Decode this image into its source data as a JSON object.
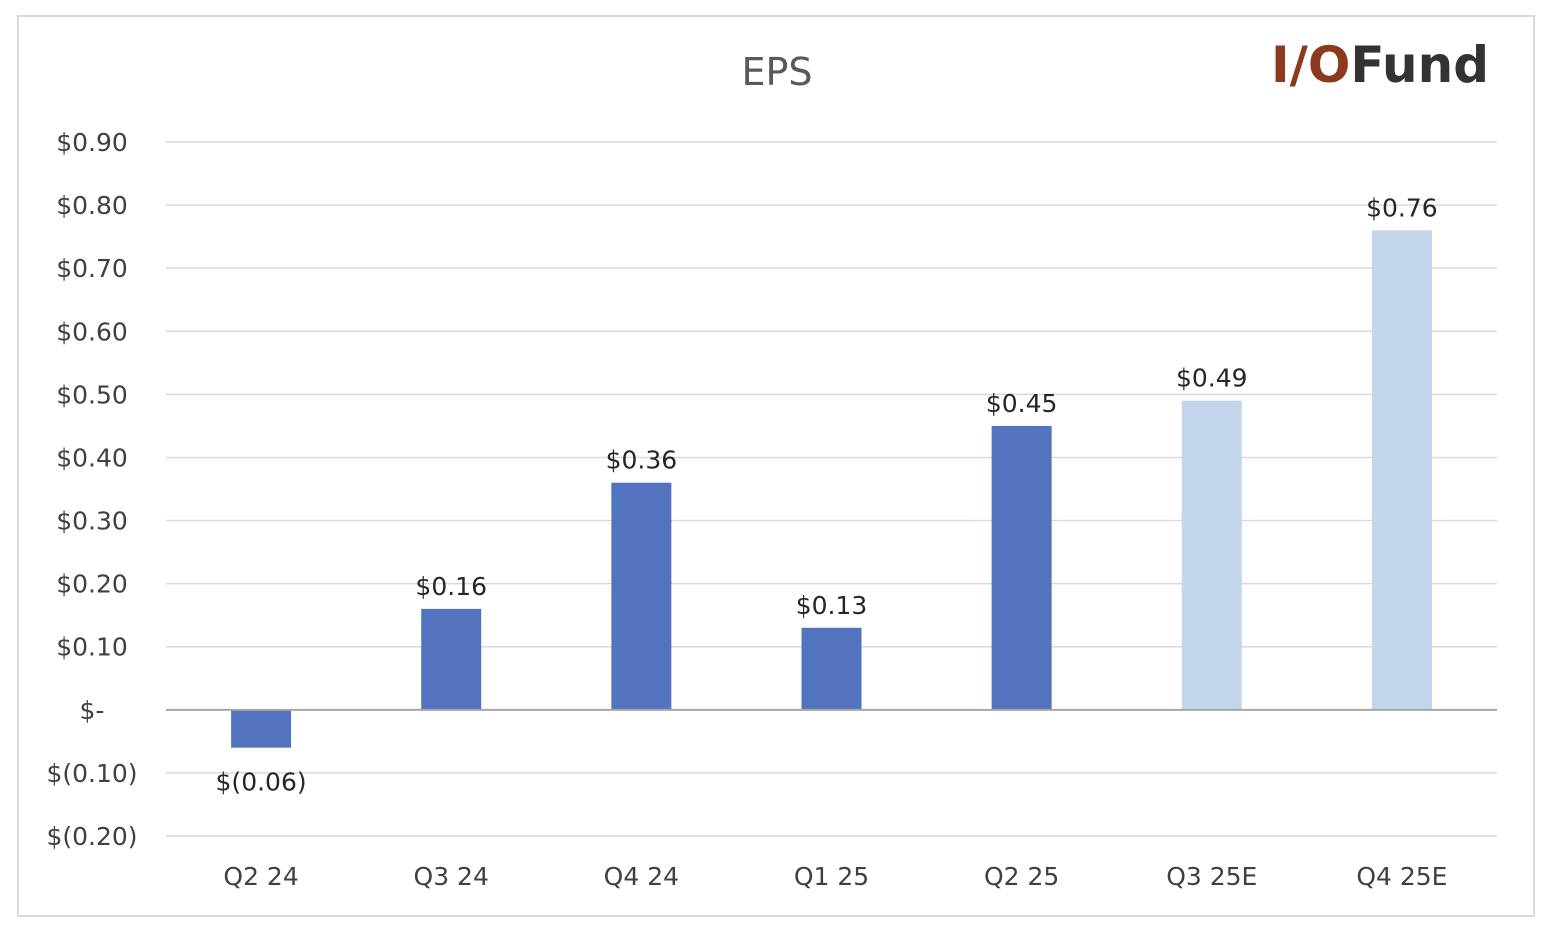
{
  "chart_data": {
    "type": "bar",
    "title": "EPS",
    "categories": [
      "Q2 24",
      "Q3 24",
      "Q4 24",
      "Q1 25",
      "Q2 25",
      "Q3 25E",
      "Q4 25E"
    ],
    "values": [
      -0.06,
      0.16,
      0.36,
      0.13,
      0.45,
      0.49,
      0.76
    ],
    "data_labels": [
      "$(0.06)",
      "$0.16",
      "$0.36",
      "$0.13",
      "$0.45",
      "$0.49",
      "$0.76"
    ],
    "ylim": [
      -0.2,
      0.9
    ],
    "yticks": [
      0.9,
      0.8,
      0.7,
      0.6,
      0.5,
      0.4,
      0.3,
      0.2,
      0.1,
      0,
      -0.1,
      -0.2
    ],
    "ytick_labels": [
      "$0.90",
      "$0.80",
      "$0.70",
      "$0.60",
      "$0.50",
      "$0.40",
      "$0.30",
      "$0.20",
      "$0.10",
      "$-",
      "$(0.10)",
      "$(0.20)"
    ],
    "xlabel": "",
    "ylabel": "",
    "grid": true,
    "legend": "none",
    "colors": {
      "actual": "#5274be",
      "estimate": "#c3d6eb",
      "gridline": "#d9d9d9",
      "zero_line": "#a6a6a6"
    },
    "estimate_flags": [
      false,
      false,
      false,
      false,
      false,
      true,
      true
    ]
  },
  "logo": {
    "prefix": "I/O",
    "suffix": "Fund",
    "prefix_color": "#8b3a1d",
    "suffix_color": "#333333"
  }
}
